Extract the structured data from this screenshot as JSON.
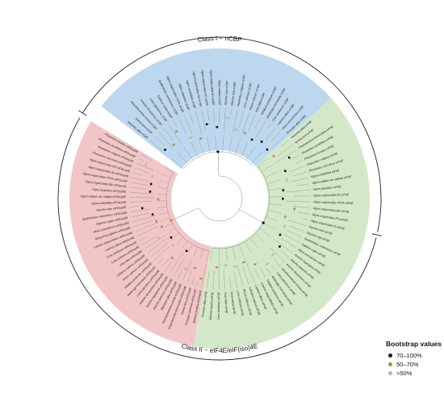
{
  "class_labels": {
    "class_i": "Class I ~ nCBP",
    "class_ii": "Class II ~ eIF4E/eIF(iso)4E"
  },
  "legend": {
    "title": "Bootstrap values",
    "items": [
      {
        "label": "70–100%",
        "color": "#111111"
      },
      {
        "label": "50–70%",
        "color": "#9a9a3a"
      },
      {
        "label": ">50%",
        "color": "#b9b9b9"
      }
    ]
  },
  "colors": {
    "class_i": "#bdd7ee",
    "green_clade": "#d3e8c8",
    "red_clade": "#f2c6c6",
    "line": "#8a8a8a",
    "ring": "#222222"
  },
  "leaves": {
    "class_i": [
      "Nelumbo alba nCBP",
      "Senna tora nCBP",
      "Aeschynomene evenia nCBP",
      "Arachis duranensis nCBP",
      "Lotus japonicus nCBP",
      "Cajanus cajan nCBP",
      "Spatholobus suberectus nCBP",
      "Vigna unguiculata IT97K nCBP",
      "Vigna angularis nCBP",
      "Vigna umbellata nCBP",
      "Vigna unguiculata BN nCBP",
      "Vigna unguiculata PO nCBP",
      "Vigna unguiculata BJ nCBP",
      "Vigna radiata nCBP",
      "Glycine max nCBP",
      "Glycine soja nCBP",
      "Phaseolus vulgaris nCBP",
      "Lens culinaris nCBP",
      "Pisum sativum nCBP",
      "Vicia faba nCBP",
      "Trifolium pratense nCBP",
      "Medicago truncatula nCBP",
      "Cicer arietinum nCBP",
      "Lupinus albus nCBP",
      "Abrus precatorius nCBP",
      "Prosopis alba nCBP"
    ],
    "green_clade": [
      "Nelumbo alba eIF4E",
      "Senna tora eIF4E",
      "Chamaecrista fasciculata eIF4E",
      "Phaseolus acutifolius eIF4E",
      "Phaseolus lunatus eIF4E",
      "Phaseolus vulgaris eIF4E",
      "Phaseolus coccineus eIF4E",
      "Vigna umbellata eIF4E",
      "Vigna radiata var radiata eIF4E",
      "Vigna angularis eIF4E",
      "Vigna unguiculata BJ eIF4E",
      "Vigna unguiculata IT97K eIF4E",
      "Vigna unguiculata BN eIF4E",
      "Vigna unguiculata PO eIF4E",
      "Vigna unguiculata SI eIF4E",
      "Glycine max eIF4E",
      "Glycine soja eIF4E",
      "Spatholobus suberectus eIF4E",
      "Cajanus cajan eIF4E",
      "Abrus precatorius eIF4E",
      "Arachis hypogaea eIF4E",
      "Arachis ipaensis eIF4E",
      "Arachis duranensis eIF4E",
      "Aeschynomene evenia eIF4E",
      "Lotus japonicus eIF4E",
      "Medicago truncatula eIF4E",
      "Trifolium pratense eIF4E",
      "Lupinus angustifolius eIF4E",
      "Lupinus albus eIF4E",
      "Lathyrus sativus eIF4E",
      "Pisum sativum eIF4E",
      "Lens culinaris eIF4E",
      "Vicia sativa eIF4E",
      "Vicia faba eIF4E",
      "Cicer arietinum eIF4E",
      "Mimosa pudica eIF4E",
      "Prosopis alba eIF4E"
    ],
    "red_clade": [
      "Mimosa pudica eIF(iso)4E",
      "Prosopis cineraria eIF(iso)4E",
      "Senna tora eIF(iso)4E",
      "Chamaecrista fasciculata eIF(iso)4E",
      "Aeschynomene evenia eIF(iso)4E",
      "Nelumbo alba eIF(iso)4E",
      "Arachis ipaensis eIF(iso)4E",
      "Arachis hypogaea eIF(iso)4E",
      "Arachis duranensis eIF(iso)4E",
      "Lotus japonicus eIF(iso)4E",
      "Medicago truncatula eIF(iso)4E",
      "Trifolium pratense eIF(iso)4E",
      "Pisum sativum eIF(iso)4E",
      "Lathyrus sativus eIF(iso)4E",
      "Vicia faba eIF(iso)4E",
      "Lens culinaris eIF(iso)4E",
      "Cicer arietinum eIF(iso)4E",
      "Lupinus albus eIF(iso)4E",
      "Lupinus angustifolius eIF(iso)4E",
      "Glycyrrhiza glabra eIF(iso)4E",
      "Abrus precatorius eIF(iso)4E",
      "Cajanus cajan eIF(iso)4E",
      "Spatholobus suberectus eIF(iso)4E",
      "Glycine max eIF(iso)4E",
      "Vigna umbellata eIF(iso)4E",
      "Vigna radiata var radiata eIF(iso)4E",
      "Vigna angularis eIF(iso)4E",
      "Vigna unguiculata BN eIF(iso)4E",
      "Vigna unguiculata IT97K eIF(iso)4E",
      "Vigna unguiculata BJ eIF(iso)4E",
      "Vigna unguiculata PO eIF(iso)4E",
      "Phaseolus coccineus eIF(iso)4E",
      "Phaseolus vulgaris eIF(iso)4E",
      "Phaseolus acutifolius eIF(iso)4E",
      "Phaseolus lunatus eIF(iso)4E"
    ]
  }
}
